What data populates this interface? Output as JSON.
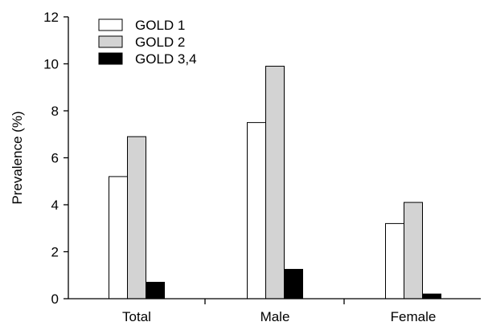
{
  "chart_data": {
    "type": "bar",
    "title": "",
    "xlabel": "",
    "ylabel": "Prevalence (%)",
    "ylim": [
      0,
      12
    ],
    "yticks": [
      0,
      2,
      4,
      6,
      8,
      10,
      12
    ],
    "grid": false,
    "legend_placement": "top-left",
    "categories": [
      "Total",
      "Male",
      "Female"
    ],
    "series": [
      {
        "name": "GOLD 1",
        "color": "#ffffff",
        "values": [
          5.2,
          7.5,
          3.2
        ]
      },
      {
        "name": "GOLD 2",
        "color": "#d3d3d3",
        "values": [
          6.9,
          9.9,
          4.1
        ]
      },
      {
        "name": "GOLD 3,4",
        "color": "#000000",
        "values": [
          0.7,
          1.25,
          0.2
        ]
      }
    ]
  }
}
